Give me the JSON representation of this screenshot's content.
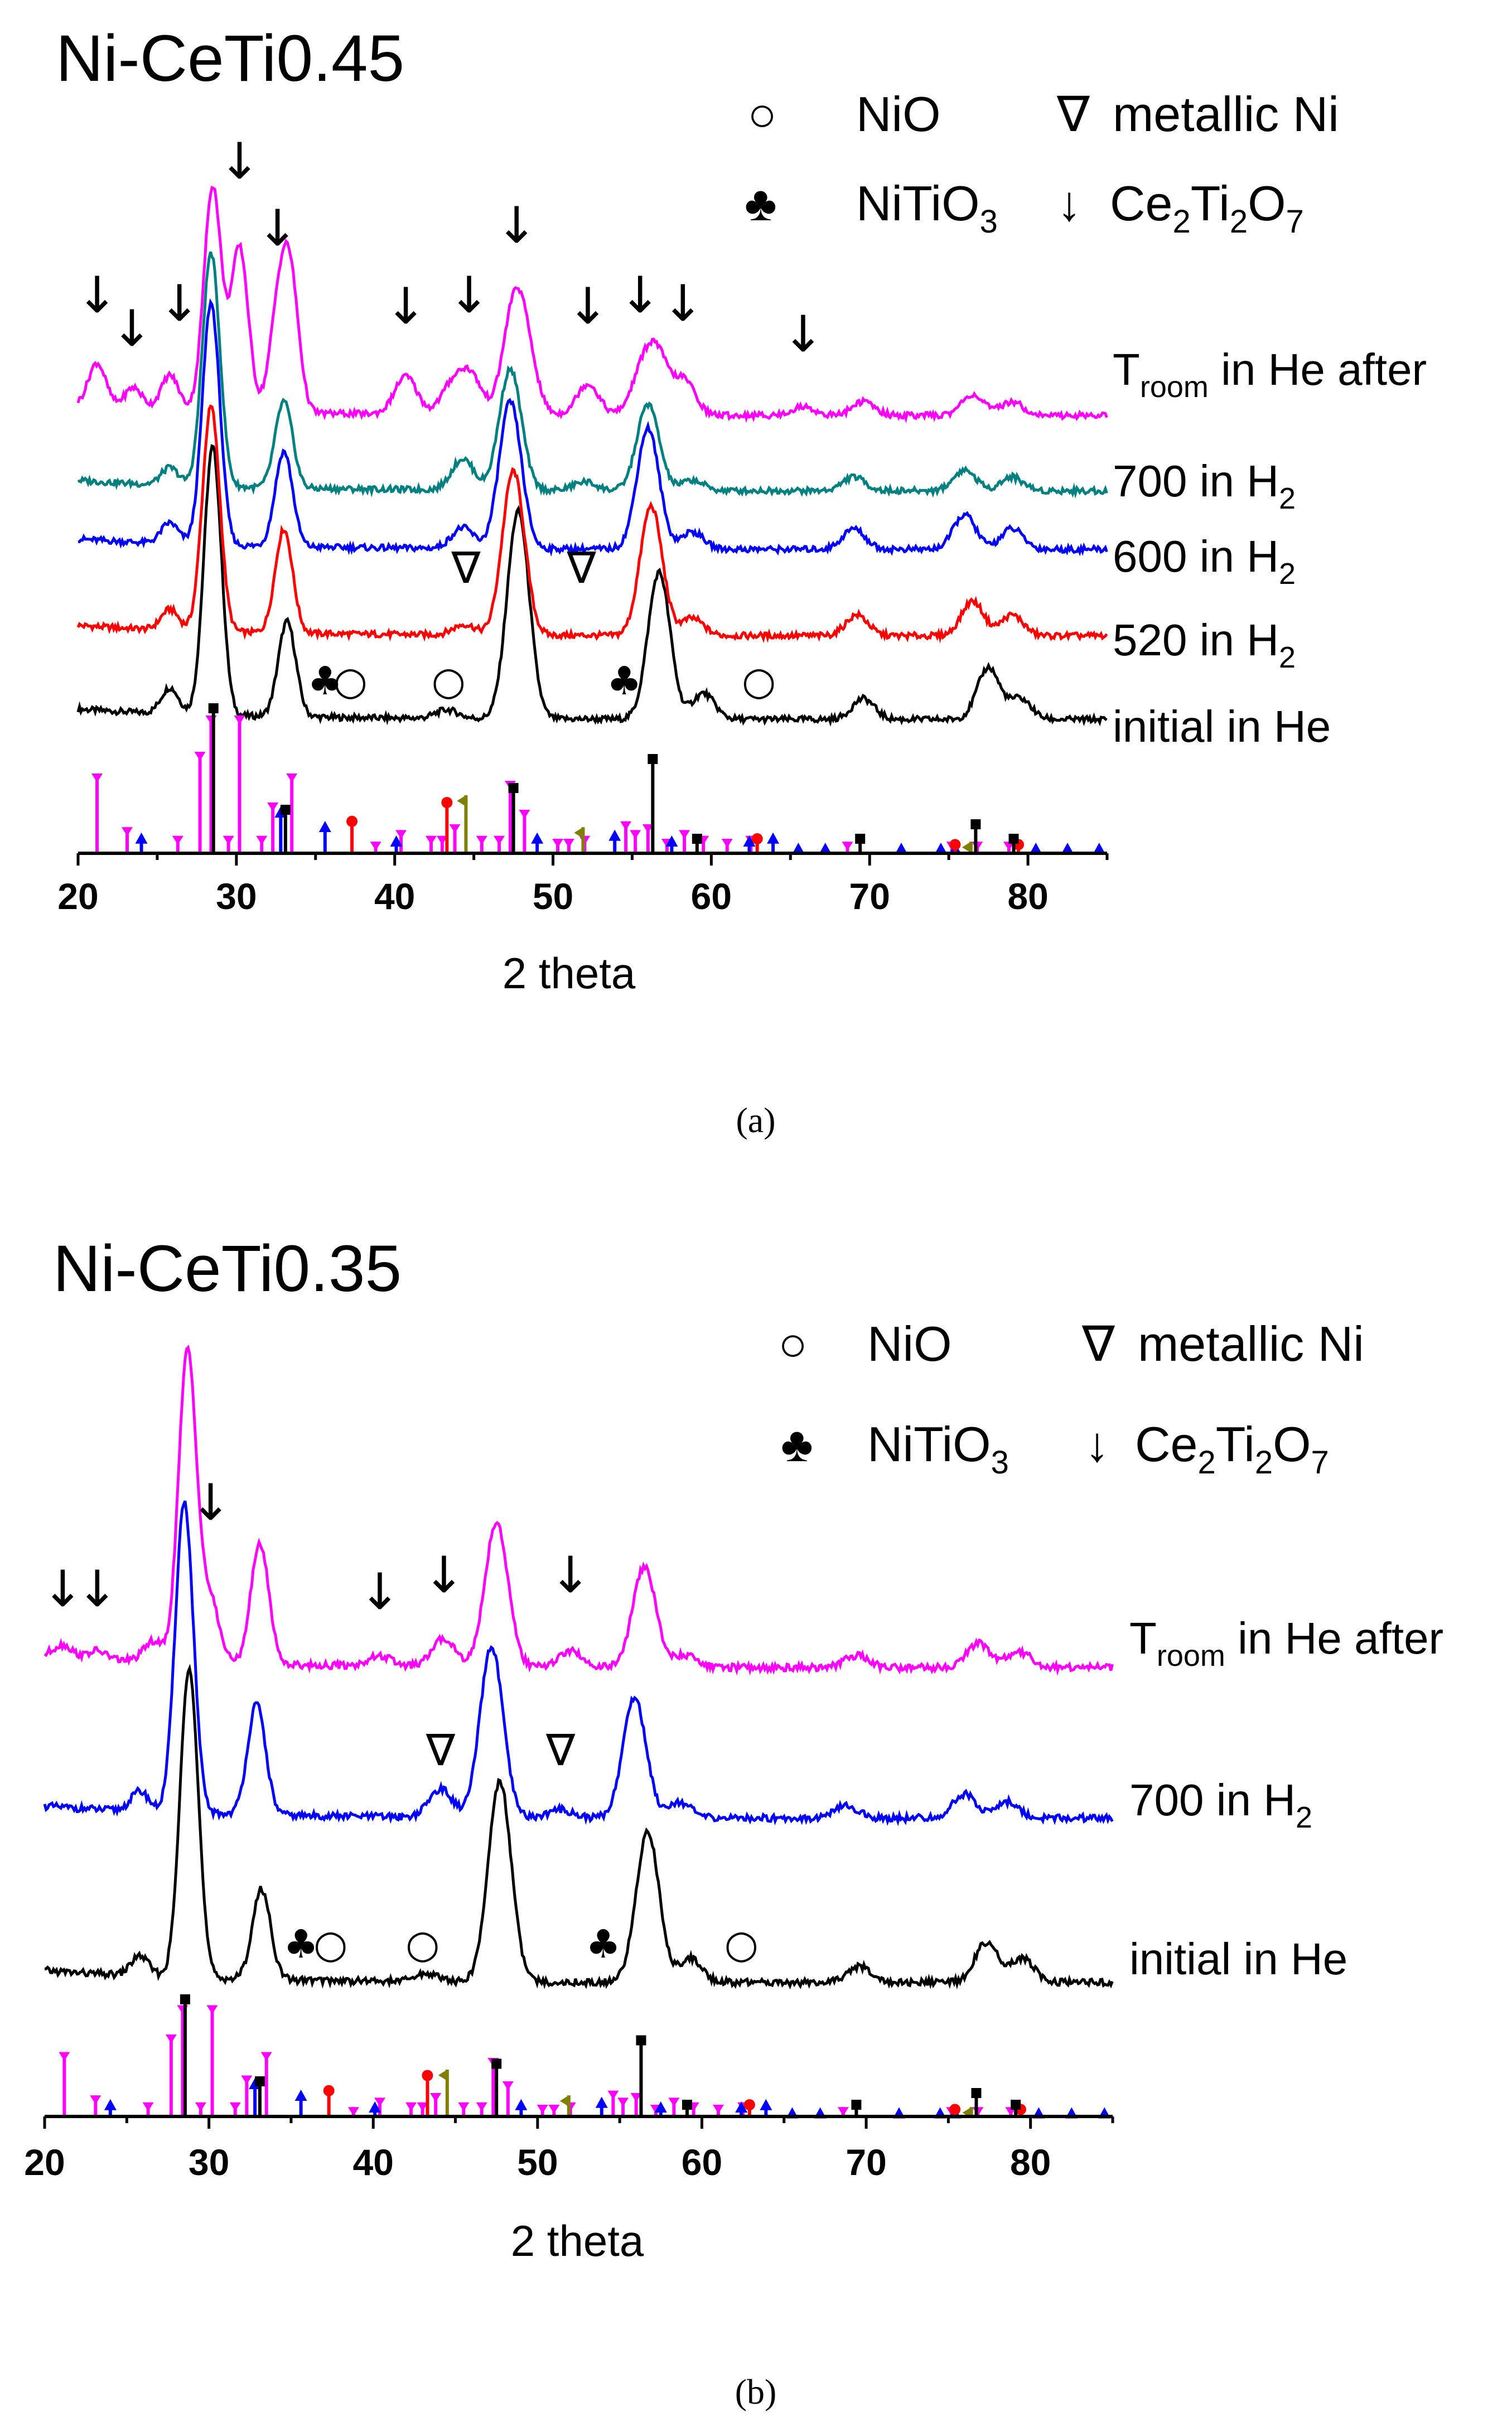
{
  "figure": {
    "panel_a_caption": "(a)",
    "panel_b_caption": "(b)"
  },
  "legend": {
    "nio": {
      "symbol": "○",
      "label": "NiO"
    },
    "metallic_ni": {
      "symbol": "∇",
      "label": "metallic Ni"
    },
    "nitio3": {
      "symbol": "♣",
      "label": "NiTiO",
      "sub": "3"
    },
    "ce2ti2o7": {
      "symbol": "↓",
      "label": "Ce",
      "sub1": "2",
      "mid1": "Ti",
      "sub2": "2",
      "mid2": "O",
      "sub3": "7"
    }
  },
  "colors": {
    "initial_he": "#000000",
    "h2_520": "#ff0000",
    "h2_600": "#0000ff",
    "h2_700_a": "#008080",
    "troom_he_after": "#ff00ff",
    "ref_magenta": "#ff00ff",
    "ref_black": "#000000",
    "ref_blue": "#0000ff",
    "ref_red": "#ff0000",
    "ref_olive": "#808000"
  },
  "chart_data": [
    {
      "type": "line",
      "panel": "a",
      "title": "Ni-CeTi0.45",
      "xlabel": "2 theta",
      "ylabel": "",
      "xlim": [
        20,
        85
      ],
      "xticks": [
        20,
        30,
        40,
        50,
        60,
        70,
        80
      ],
      "series": [
        {
          "name": "initial in He",
          "color": "#000000",
          "label_parts": [
            "initial in He"
          ],
          "peaks": [
            [
              25.8,
              0.15
            ],
            [
              28.5,
              1.55
            ],
            [
              33.2,
              0.55
            ],
            [
              43.3,
              0.05
            ],
            [
              47.8,
              1.2
            ],
            [
              56.7,
              0.85
            ],
            [
              59.5,
              0.15
            ],
            [
              69.6,
              0.12
            ],
            [
              77.5,
              0.3
            ],
            [
              79.5,
              0.12
            ]
          ]
        },
        {
          "name": "520 in H2",
          "color": "#ff0000",
          "label_parts": [
            "520 in H",
            "2"
          ],
          "peaks": [
            [
              25.8,
              0.12
            ],
            [
              28.4,
              1.3
            ],
            [
              33.0,
              0.6
            ],
            [
              44.4,
              0.06
            ],
            [
              47.5,
              0.95
            ],
            [
              56.2,
              0.75
            ],
            [
              58.8,
              0.1
            ],
            [
              69.2,
              0.12
            ],
            [
              76.5,
              0.2
            ],
            [
              79.0,
              0.12
            ]
          ]
        },
        {
          "name": "600 in H2",
          "color": "#0000ff",
          "label_parts": [
            "600 in H",
            "2"
          ],
          "peaks": [
            [
              25.8,
              0.12
            ],
            [
              28.4,
              1.4
            ],
            [
              33.0,
              0.55
            ],
            [
              44.3,
              0.12
            ],
            [
              47.3,
              0.85
            ],
            [
              56.0,
              0.7
            ],
            [
              58.8,
              0.1
            ],
            [
              69.0,
              0.12
            ],
            [
              76.0,
              0.2
            ],
            [
              79.0,
              0.12
            ]
          ]
        },
        {
          "name": "700 in H2",
          "color": "#008080",
          "label_parts": [
            "700 in H",
            "2"
          ],
          "peaks": [
            [
              25.8,
              0.1
            ],
            [
              28.4,
              1.35
            ],
            [
              33.0,
              0.5
            ],
            [
              44.3,
              0.18
            ],
            [
              47.3,
              0.7
            ],
            [
              52.0,
              0.05
            ],
            [
              56.0,
              0.5
            ],
            [
              58.8,
              0.06
            ],
            [
              69.0,
              0.08
            ],
            [
              76.0,
              0.12
            ],
            [
              79.0,
              0.08
            ]
          ]
        },
        {
          "name": "Troom in He after",
          "color": "#ff00ff",
          "label_parts": [
            "T",
            "room",
            " in He after"
          ],
          "peaks": [
            [
              21.2,
              0.25
            ],
            [
              23.5,
              0.12
            ],
            [
              25.8,
              0.2
            ],
            [
              28.5,
              1.3
            ],
            [
              30.2,
              0.95
            ],
            [
              32.6,
              0.5
            ],
            [
              33.4,
              0.75
            ],
            [
              40.7,
              0.22
            ],
            [
              43.6,
              0.16
            ],
            [
              44.8,
              0.22
            ],
            [
              47.5,
              0.55
            ],
            [
              48.3,
              0.3
            ],
            [
              52.2,
              0.18
            ],
            [
              55.6,
              0.22
            ],
            [
              56.6,
              0.32
            ],
            [
              58.3,
              0.2
            ],
            [
              65.8,
              0.05
            ],
            [
              69.6,
              0.08
            ],
            [
              76.5,
              0.12
            ],
            [
              79.0,
              0.08
            ]
          ]
        }
      ],
      "markers": [
        {
          "symbol": "♣",
          "x": 35.6,
          "series": "initial in He"
        },
        {
          "symbol": "○",
          "x": 37.2,
          "series": "initial in He"
        },
        {
          "symbol": "○",
          "x": 43.4,
          "series": "initial in He"
        },
        {
          "symbol": "♣",
          "x": 54.5,
          "series": "initial in He"
        },
        {
          "symbol": "○",
          "x": 63.0,
          "series": "initial in He"
        },
        {
          "symbol": "∇",
          "x": 44.5,
          "series": "520 in H2"
        },
        {
          "symbol": "∇",
          "x": 51.8,
          "series": "520 in H2"
        }
      ],
      "ce2ti2o7_arrows": [
        21.2,
        23.4,
        26.4,
        30.2,
        32.6,
        40.7,
        44.7,
        47.7,
        52.2,
        55.5,
        58.2,
        65.8
      ]
    },
    {
      "type": "line",
      "panel": "b",
      "title": "Ni-CeTi0.35",
      "xlabel": "2 theta",
      "ylabel": "",
      "xlim": [
        20,
        85
      ],
      "xticks": [
        20,
        30,
        40,
        50,
        60,
        70,
        80
      ],
      "series": [
        {
          "name": "initial in He",
          "color": "#000000",
          "label_parts": [
            "initial in He"
          ],
          "peaks": [
            [
              25.8,
              0.1
            ],
            [
              28.8,
              1.55
            ],
            [
              33.2,
              0.45
            ],
            [
              43.3,
              0.04
            ],
            [
              47.7,
              1.0
            ],
            [
              56.7,
              0.75
            ],
            [
              59.3,
              0.12
            ],
            [
              69.6,
              0.08
            ],
            [
              77.3,
              0.2
            ],
            [
              79.5,
              0.12
            ]
          ]
        },
        {
          "name": "700 in H2",
          "color": "#0000ff",
          "label_parts": [
            "700 in H",
            "2"
          ],
          "peaks": [
            [
              25.8,
              0.1
            ],
            [
              28.5,
              1.55
            ],
            [
              32.9,
              0.55
            ],
            [
              44.1,
              0.14
            ],
            [
              47.2,
              0.85
            ],
            [
              51.4,
              0.04
            ],
            [
              55.9,
              0.6
            ],
            [
              58.6,
              0.08
            ],
            [
              68.8,
              0.06
            ],
            [
              76.0,
              0.12
            ],
            [
              78.6,
              0.08
            ]
          ]
        },
        {
          "name": "Troom in He after",
          "color": "#ff00ff",
          "label_parts": [
            "T",
            "room",
            " in He after"
          ],
          "peaks": [
            [
              21.1,
              0.06
            ],
            [
              23.2,
              0.04
            ],
            [
              26.6,
              0.1
            ],
            [
              28.7,
              1.55
            ],
            [
              30.1,
              0.3
            ],
            [
              33.1,
              0.6
            ],
            [
              40.4,
              0.05
            ],
            [
              44.3,
              0.14
            ],
            [
              47.5,
              0.72
            ],
            [
              52.0,
              0.08
            ],
            [
              56.5,
              0.5
            ],
            [
              59.0,
              0.06
            ],
            [
              69.4,
              0.06
            ],
            [
              76.8,
              0.12
            ],
            [
              79.3,
              0.08
            ]
          ]
        }
      ],
      "markers": [
        {
          "symbol": "♣",
          "x": 35.6,
          "series": "initial in He"
        },
        {
          "symbol": "○",
          "x": 37.4,
          "series": "initial in He"
        },
        {
          "symbol": "○",
          "x": 43.0,
          "series": "initial in He"
        },
        {
          "symbol": "♣",
          "x": 54.0,
          "series": "initial in He"
        },
        {
          "symbol": "○",
          "x": 62.4,
          "series": "initial in He"
        },
        {
          "symbol": "∇",
          "x": 44.1,
          "series": "700 in H2"
        },
        {
          "symbol": "∇",
          "x": 51.4,
          "series": "700 in H2"
        }
      ],
      "ce2ti2o7_arrows": [
        21.1,
        23.2,
        30.1,
        40.4,
        44.3,
        52.0
      ]
    }
  ],
  "reference_patterns": {
    "magenta": [
      [
        21.2,
        0.55
      ],
      [
        23.1,
        0.18
      ],
      [
        26.3,
        0.12
      ],
      [
        27.7,
        0.7
      ],
      [
        28.4,
        0.95
      ],
      [
        29.5,
        0.12
      ],
      [
        30.2,
        0.95
      ],
      [
        31.6,
        0.12
      ],
      [
        32.3,
        0.35
      ],
      [
        33.5,
        0.55
      ],
      [
        38.8,
        0.08
      ],
      [
        40.4,
        0.16
      ],
      [
        42.3,
        0.12
      ],
      [
        43.0,
        0.12
      ],
      [
        43.8,
        0.2
      ],
      [
        45.5,
        0.12
      ],
      [
        46.6,
        0.12
      ],
      [
        47.3,
        0.5
      ],
      [
        48.2,
        0.3
      ],
      [
        50.3,
        0.1
      ],
      [
        51.0,
        0.1
      ],
      [
        52.0,
        0.12
      ],
      [
        54.6,
        0.22
      ],
      [
        55.2,
        0.16
      ],
      [
        56.0,
        0.2
      ],
      [
        57.2,
        0.1
      ],
      [
        58.3,
        0.16
      ],
      [
        59.5,
        0.12
      ],
      [
        61.0,
        0.1
      ],
      [
        62.5,
        0.12
      ],
      [
        68.6,
        0.08
      ],
      [
        75.2,
        0.08
      ],
      [
        76.8,
        0.08
      ],
      [
        78.8,
        0.08
      ]
    ],
    "black": [
      [
        28.55,
        1.0
      ],
      [
        33.1,
        0.3
      ],
      [
        47.5,
        0.45
      ],
      [
        56.3,
        0.65
      ],
      [
        59.1,
        0.1
      ],
      [
        69.4,
        0.1
      ],
      [
        76.7,
        0.2
      ],
      [
        79.1,
        0.1
      ]
    ],
    "blue": [
      [
        24.0,
        0.12
      ],
      [
        32.8,
        0.3
      ],
      [
        35.6,
        0.2
      ],
      [
        40.1,
        0.1
      ],
      [
        49.0,
        0.12
      ],
      [
        53.9,
        0.14
      ],
      [
        57.5,
        0.1
      ],
      [
        62.4,
        0.1
      ],
      [
        63.9,
        0.12
      ],
      [
        65.5,
        0.05
      ],
      [
        67.2,
        0.05
      ],
      [
        72.0,
        0.05
      ],
      [
        74.5,
        0.05
      ],
      [
        75.4,
        0.05
      ],
      [
        80.5,
        0.05
      ],
      [
        82.5,
        0.05
      ],
      [
        84.5,
        0.05
      ]
    ],
    "red": [
      [
        37.3,
        0.22
      ],
      [
        43.3,
        0.35
      ],
      [
        62.9,
        0.1
      ],
      [
        75.4,
        0.06
      ],
      [
        79.4,
        0.06
      ]
    ],
    "olive": [
      [
        44.5,
        0.4
      ],
      [
        51.9,
        0.18
      ],
      [
        76.4,
        0.08
      ]
    ]
  }
}
